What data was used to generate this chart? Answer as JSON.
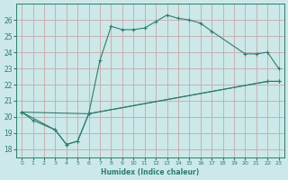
{
  "xlabel": "Humidex (Indice chaleur)",
  "bg_color": "#cce8e8",
  "grid_color": "#aacccc",
  "line_color": "#2e7d6e",
  "xlim": [
    -0.5,
    23.5
  ],
  "ylim": [
    17.5,
    27.0
  ],
  "xticks": [
    0,
    1,
    2,
    3,
    4,
    5,
    6,
    7,
    8,
    9,
    10,
    11,
    12,
    13,
    14,
    15,
    16,
    17,
    18,
    19,
    20,
    21,
    22,
    23
  ],
  "yticks": [
    18,
    19,
    20,
    21,
    22,
    23,
    24,
    25,
    26
  ],
  "curve1_x": [
    0,
    1,
    3,
    4,
    5,
    6,
    7,
    8,
    9,
    10,
    11,
    12,
    13,
    14,
    15,
    16,
    17,
    20,
    21,
    22,
    23
  ],
  "curve1_y": [
    20.3,
    19.8,
    19.2,
    18.3,
    18.5,
    20.2,
    23.5,
    25.6,
    25.4,
    25.4,
    25.5,
    25.9,
    26.3,
    26.1,
    26.0,
    25.8,
    25.3,
    23.9,
    23.9,
    24.0,
    23.0
  ],
  "curve2_x": [
    0,
    3,
    4,
    5,
    6,
    22,
    23
  ],
  "curve2_y": [
    20.3,
    19.2,
    18.3,
    18.5,
    20.2,
    22.2,
    22.2
  ],
  "curve3_x": [
    0,
    6,
    22,
    23
  ],
  "curve3_y": [
    20.3,
    20.2,
    22.2,
    22.2
  ]
}
